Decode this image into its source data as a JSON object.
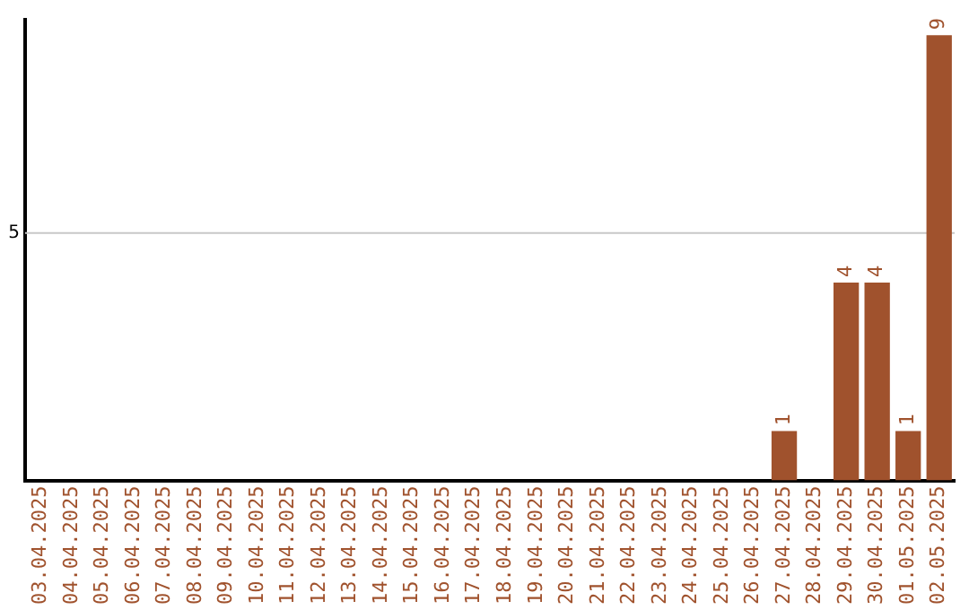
{
  "chart_data": {
    "type": "bar",
    "categories": [
      "03.04.2025",
      "04.04.2025",
      "05.04.2025",
      "06.04.2025",
      "07.04.2025",
      "08.04.2025",
      "09.04.2025",
      "10.04.2025",
      "11.04.2025",
      "12.04.2025",
      "13.04.2025",
      "14.04.2025",
      "15.04.2025",
      "16.04.2025",
      "17.04.2025",
      "18.04.2025",
      "19.04.2025",
      "20.04.2025",
      "21.04.2025",
      "22.04.2025",
      "23.04.2025",
      "24.04.2025",
      "25.04.2025",
      "26.04.2025",
      "27.04.2025",
      "28.04.2025",
      "29.04.2025",
      "30.04.2025",
      "01.05.2025",
      "02.05.2025"
    ],
    "values": [
      null,
      null,
      null,
      null,
      null,
      null,
      null,
      null,
      null,
      null,
      null,
      null,
      null,
      null,
      null,
      null,
      null,
      null,
      null,
      null,
      null,
      null,
      null,
      null,
      1,
      null,
      4,
      4,
      1,
      9
    ],
    "data_labels": true,
    "ylim": [
      0,
      9.35
    ],
    "color": "#a0522d",
    "ref_lines": [
      {
        "axis": "y",
        "value": 5,
        "label": "5",
        "color": "#c8c8c8"
      }
    ]
  }
}
